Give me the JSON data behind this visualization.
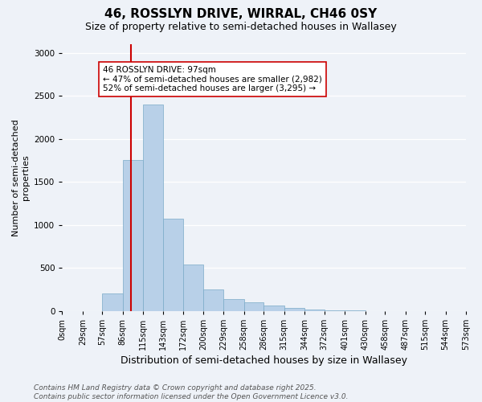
{
  "title": "46, ROSSLYN DRIVE, WIRRAL, CH46 0SY",
  "subtitle": "Size of property relative to semi-detached houses in Wallasey",
  "xlabel": "Distribution of semi-detached houses by size in Wallasey",
  "ylabel": "Number of semi-detached\nproperties",
  "bin_labels": [
    "0sqm",
    "29sqm",
    "57sqm",
    "86sqm",
    "115sqm",
    "143sqm",
    "172sqm",
    "200sqm",
    "229sqm",
    "258sqm",
    "286sqm",
    "315sqm",
    "344sqm",
    "372sqm",
    "401sqm",
    "430sqm",
    "458sqm",
    "487sqm",
    "515sqm",
    "544sqm",
    "573sqm"
  ],
  "bin_edges": [
    0,
    29,
    57,
    86,
    115,
    143,
    172,
    200,
    229,
    258,
    286,
    315,
    344,
    372,
    401,
    430,
    458,
    487,
    515,
    544,
    573
  ],
  "bar_heights": [
    0,
    0,
    200,
    1750,
    2400,
    1075,
    540,
    250,
    135,
    95,
    65,
    30,
    20,
    5,
    2,
    0,
    0,
    0,
    0,
    0
  ],
  "bar_color": "#b8d0e8",
  "bar_edgecolor": "#7aaac8",
  "property_size": 97,
  "property_line_color": "#cc0000",
  "annotation_text": "46 ROSSLYN DRIVE: 97sqm\n← 47% of semi-detached houses are smaller (2,982)\n52% of semi-detached houses are larger (3,295) →",
  "annotation_box_color": "#ffffff",
  "annotation_box_edgecolor": "#cc0000",
  "ylim": [
    0,
    3100
  ],
  "yticks": [
    0,
    500,
    1000,
    1500,
    2000,
    2500,
    3000
  ],
  "background_color": "#eef2f8",
  "grid_color": "#ffffff",
  "footer_text": "Contains HM Land Registry data © Crown copyright and database right 2025.\nContains public sector information licensed under the Open Government Licence v3.0.",
  "title_fontsize": 11,
  "subtitle_fontsize": 9,
  "xlabel_fontsize": 9,
  "ylabel_fontsize": 8,
  "tick_fontsize": 7,
  "annotation_fontsize": 7.5,
  "footer_fontsize": 6.5
}
